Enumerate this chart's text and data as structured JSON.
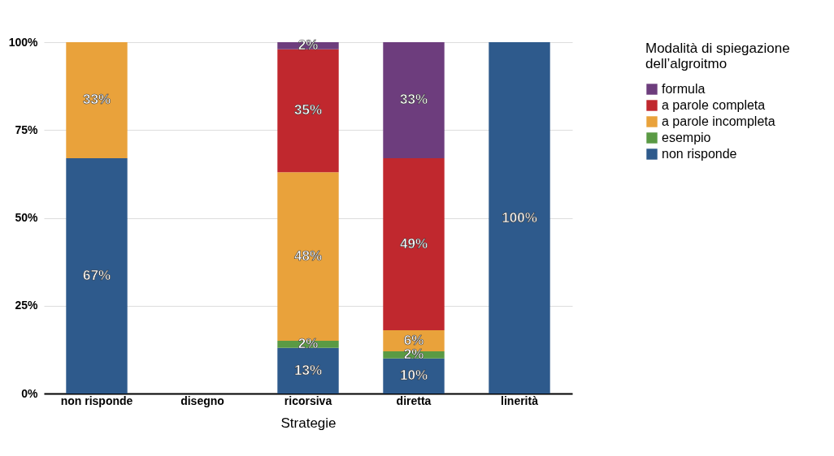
{
  "chart_data": {
    "type": "bar",
    "stacked": true,
    "categories": [
      "non risponde",
      "disegno",
      "ricorsiva",
      "diretta",
      "linerità"
    ],
    "xlabel": "Strategie",
    "legend_title": "Modalità di spiegazione dell’algroitmo",
    "legend": "top right",
    "grid": "y",
    "ylim": [
      0,
      100
    ],
    "yticks": [
      {
        "value": 0,
        "label": "0%"
      },
      {
        "value": 25,
        "label": "25%"
      },
      {
        "value": 50,
        "label": "50%"
      },
      {
        "value": 75,
        "label": "75%"
      },
      {
        "value": 100,
        "label": "100%"
      }
    ],
    "series": [
      {
        "name": "non risponde",
        "color": "#2e5a8c",
        "values": [
          67,
          null,
          13,
          10,
          100
        ],
        "value_labels": [
          "67%",
          null,
          "13%",
          "10%",
          "100%"
        ]
      },
      {
        "name": "esempio",
        "color": "#5a9a44",
        "values": [
          null,
          null,
          2,
          2,
          null
        ],
        "value_labels": [
          null,
          null,
          "2%",
          "2%",
          null
        ]
      },
      {
        "name": "a parole incompleta",
        "color": "#e9a23b",
        "values": [
          33,
          null,
          48,
          6,
          null
        ],
        "value_labels": [
          "33%",
          null,
          "48%",
          "6%",
          null
        ]
      },
      {
        "name": "a parole completa",
        "color": "#c0282e",
        "values": [
          null,
          null,
          35,
          49,
          null
        ],
        "value_labels": [
          null,
          null,
          "35%",
          "49%",
          null
        ]
      },
      {
        "name": "formula",
        "color": "#6d3d7d",
        "values": [
          null,
          null,
          2,
          33,
          null
        ],
        "value_labels": [
          null,
          null,
          "2%",
          "33%",
          null
        ]
      }
    ]
  }
}
